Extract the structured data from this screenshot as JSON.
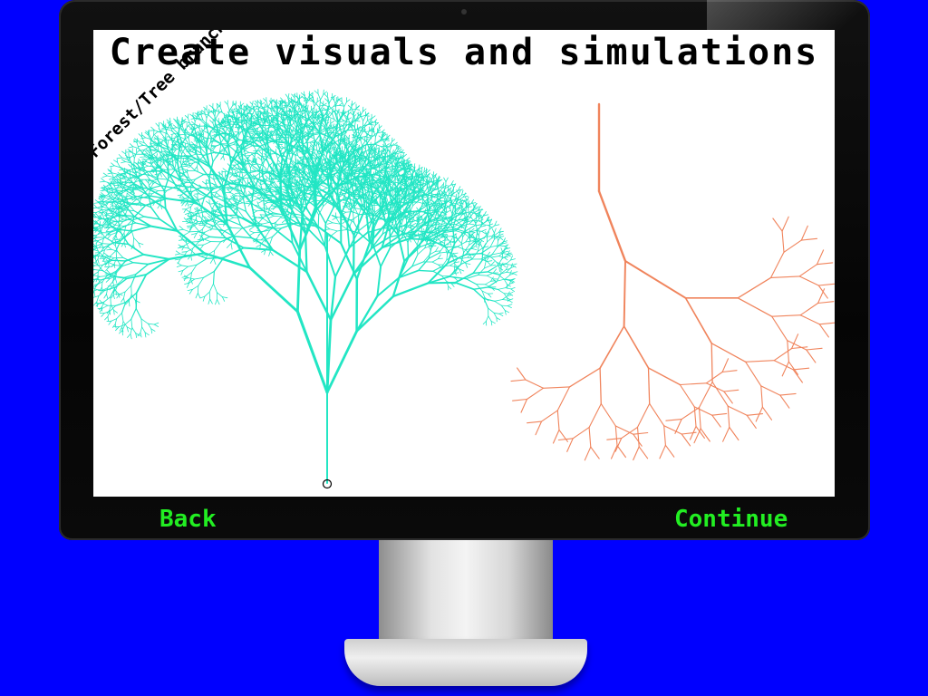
{
  "screen": {
    "title": "Create visuals and simulations",
    "rotated_label": "Forest/Tree branching"
  },
  "nav": {
    "back_label": "Back",
    "continue_label": "Continue"
  },
  "colors": {
    "background": "#0000ff",
    "tree_left": "#22e6c4",
    "tree_right": "#f0845c",
    "nav_text": "#22ee22"
  },
  "icons": {
    "tree_left": "fractal-tree-icon",
    "tree_right": "branching-tree-icon",
    "root_marker": "circle-marker-icon"
  }
}
